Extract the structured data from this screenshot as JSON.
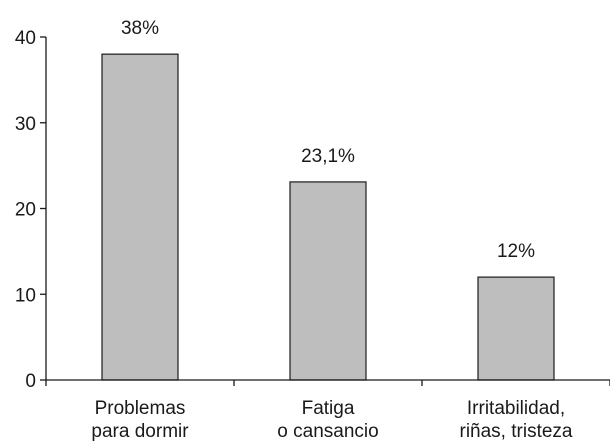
{
  "chart_data": {
    "type": "bar",
    "title": "",
    "xlabel": "",
    "ylabel": "",
    "ylim": [
      0,
      40
    ],
    "yticks": [
      "0",
      "10",
      "20",
      "30",
      "40"
    ],
    "categories": [
      [
        "Problemas",
        "para dormir"
      ],
      [
        "Fatiga",
        "o cansancio"
      ],
      [
        "Irritabilidad,",
        "riñas, tristeza"
      ]
    ],
    "values": [
      38,
      23.1,
      12
    ],
    "data_labels": [
      "38%",
      "23,1%",
      "12%"
    ],
    "grid": false,
    "bar_color": "#bebebe",
    "edge_color": "#1a1a1a"
  }
}
